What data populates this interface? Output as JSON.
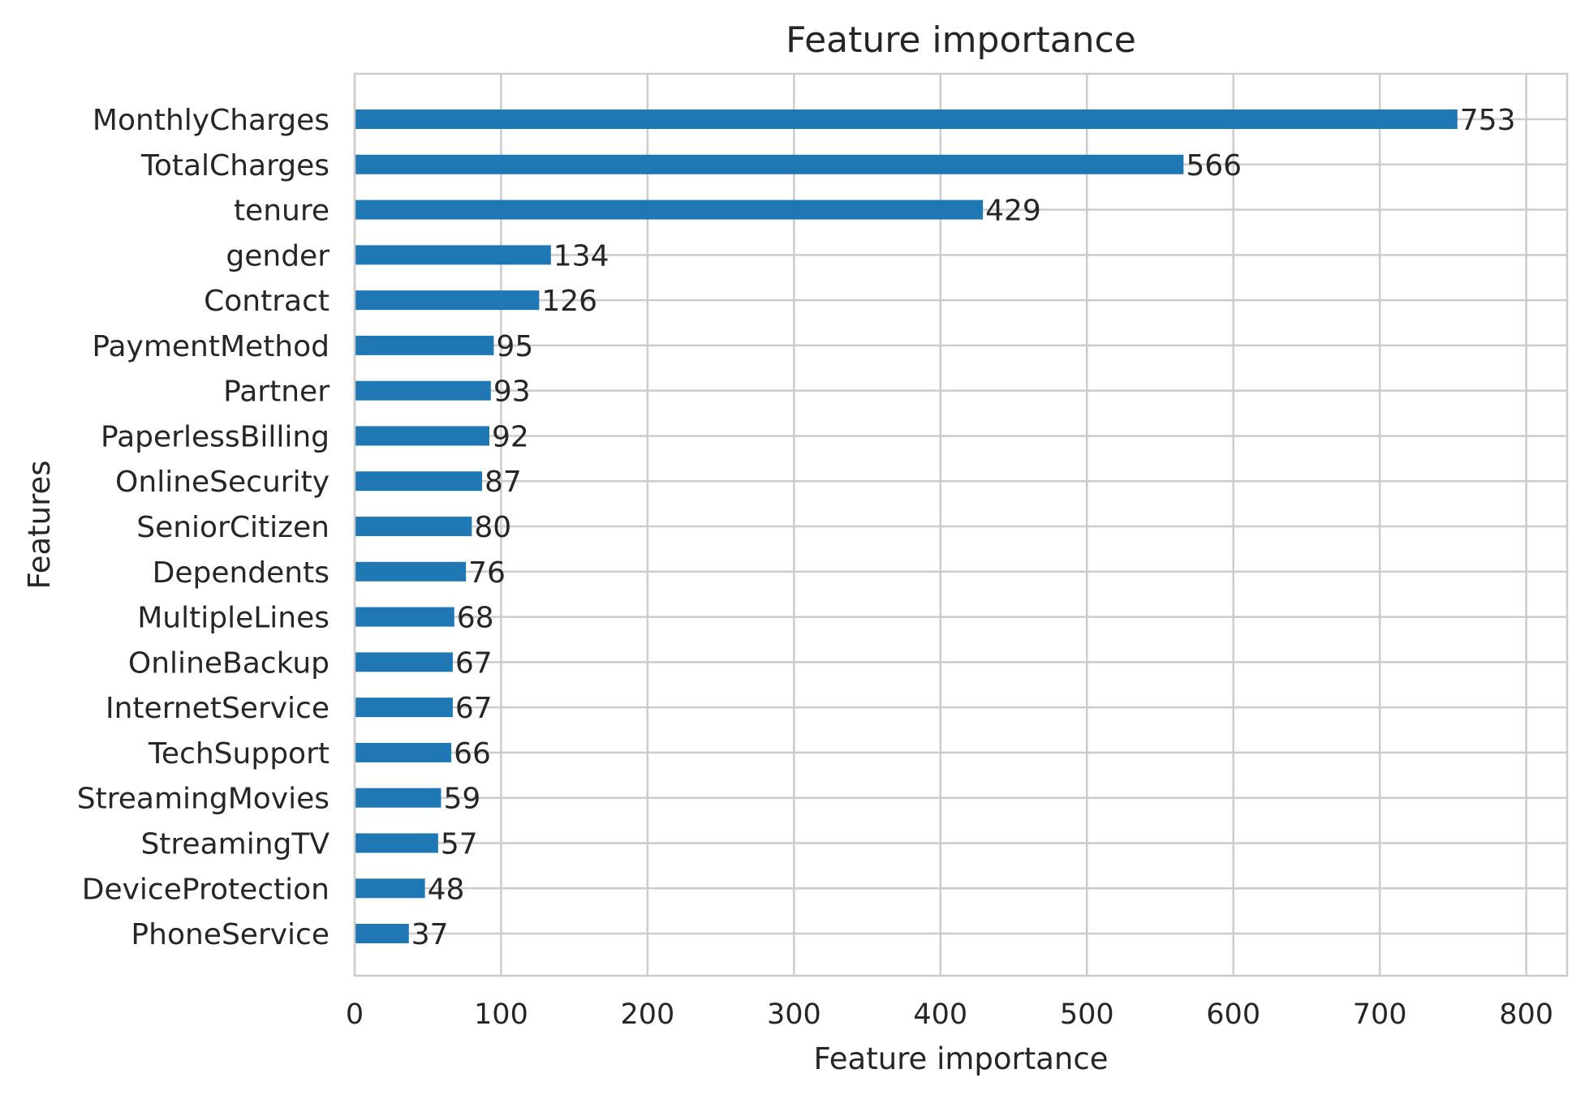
{
  "chart_data": {
    "type": "bar",
    "orientation": "horizontal",
    "title": "Feature importance",
    "xlabel": "Feature importance",
    "ylabel": "Features",
    "xlim": [
      0,
      828
    ],
    "xticks": [
      0,
      100,
      200,
      300,
      400,
      500,
      600,
      700,
      800
    ],
    "grid": true,
    "bar_color": "#1f77b4",
    "categories": [
      "MonthlyCharges",
      "TotalCharges",
      "tenure",
      "gender",
      "Contract",
      "PaymentMethod",
      "Partner",
      "PaperlessBilling",
      "OnlineSecurity",
      "SeniorCitizen",
      "Dependents",
      "MultipleLines",
      "OnlineBackup",
      "InternetService",
      "TechSupport",
      "StreamingMovies",
      "StreamingTV",
      "DeviceProtection",
      "PhoneService"
    ],
    "values": [
      753,
      566,
      429,
      134,
      126,
      95,
      93,
      92,
      87,
      80,
      76,
      68,
      67,
      67,
      66,
      59,
      57,
      48,
      37
    ]
  }
}
